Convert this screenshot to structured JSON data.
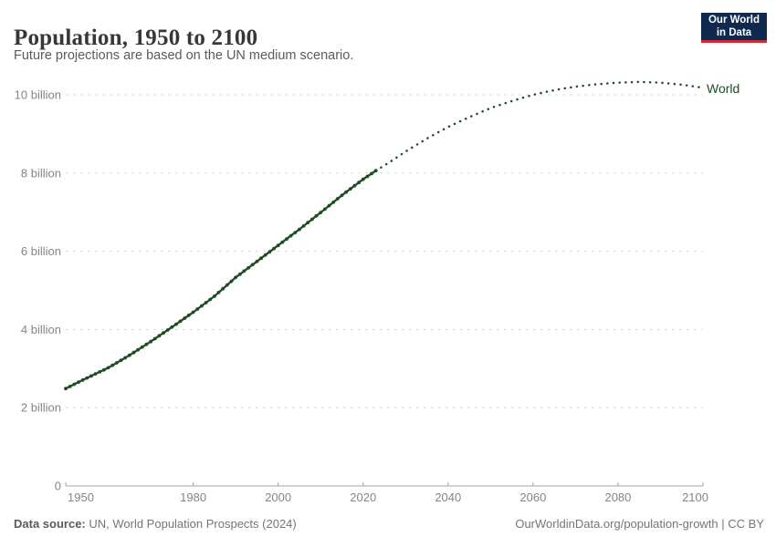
{
  "header": {
    "title": "Population, 1950 to 2100",
    "subtitle": "Future projections are based on the UN medium scenario."
  },
  "logo": {
    "line1": "Our World",
    "line2": "in Data",
    "background_color": "#0f2a4e",
    "accent_color": "#d12b3a"
  },
  "footer": {
    "source_label": "Data source:",
    "source_text": " UN, World Population Prospects (2024)",
    "credit_text": "OurWorldinData.org/population-growth | CC BY"
  },
  "chart_data": {
    "type": "line",
    "title": "Population, 1950 to 2100",
    "subtitle": "Future projections are based on the UN medium scenario.",
    "xlabel": "",
    "ylabel": "",
    "xlim": [
      1950,
      2100
    ],
    "ylim": [
      0,
      10.8
    ],
    "x_ticks": [
      1950,
      1980,
      2000,
      2020,
      2040,
      2060,
      2080,
      2100
    ],
    "y_ticks": [
      0,
      2,
      4,
      6,
      8,
      10
    ],
    "y_tick_labels": [
      "0",
      "2 billion",
      "4 billion",
      "6 billion",
      "8 billion",
      "10 billion"
    ],
    "grid": "horizontal-dashed",
    "legend_position": "end-of-line",
    "line_color": "#1d4d23",
    "grid_color": "#dcdcdc",
    "axis_color": "#a3a3a3",
    "projection_start_year": 2023,
    "projection_style": "dotted",
    "series": [
      {
        "name": "World",
        "points": [
          [
            1950,
            2.49
          ],
          [
            1955,
            2.76
          ],
          [
            1960,
            3.02
          ],
          [
            1965,
            3.34
          ],
          [
            1970,
            3.69
          ],
          [
            1975,
            4.06
          ],
          [
            1980,
            4.44
          ],
          [
            1985,
            4.85
          ],
          [
            1990,
            5.33
          ],
          [
            1995,
            5.74
          ],
          [
            2000,
            6.15
          ],
          [
            2005,
            6.56
          ],
          [
            2010,
            6.99
          ],
          [
            2015,
            7.43
          ],
          [
            2020,
            7.84
          ],
          [
            2023,
            8.06
          ],
          [
            2025,
            8.19
          ],
          [
            2030,
            8.55
          ],
          [
            2035,
            8.88
          ],
          [
            2040,
            9.18
          ],
          [
            2045,
            9.43
          ],
          [
            2050,
            9.66
          ],
          [
            2055,
            9.84
          ],
          [
            2060,
            10.0
          ],
          [
            2065,
            10.12
          ],
          [
            2070,
            10.21
          ],
          [
            2075,
            10.27
          ],
          [
            2080,
            10.31
          ],
          [
            2085,
            10.33
          ],
          [
            2090,
            10.31
          ],
          [
            2095,
            10.26
          ],
          [
            2100,
            10.18
          ]
        ]
      }
    ]
  }
}
